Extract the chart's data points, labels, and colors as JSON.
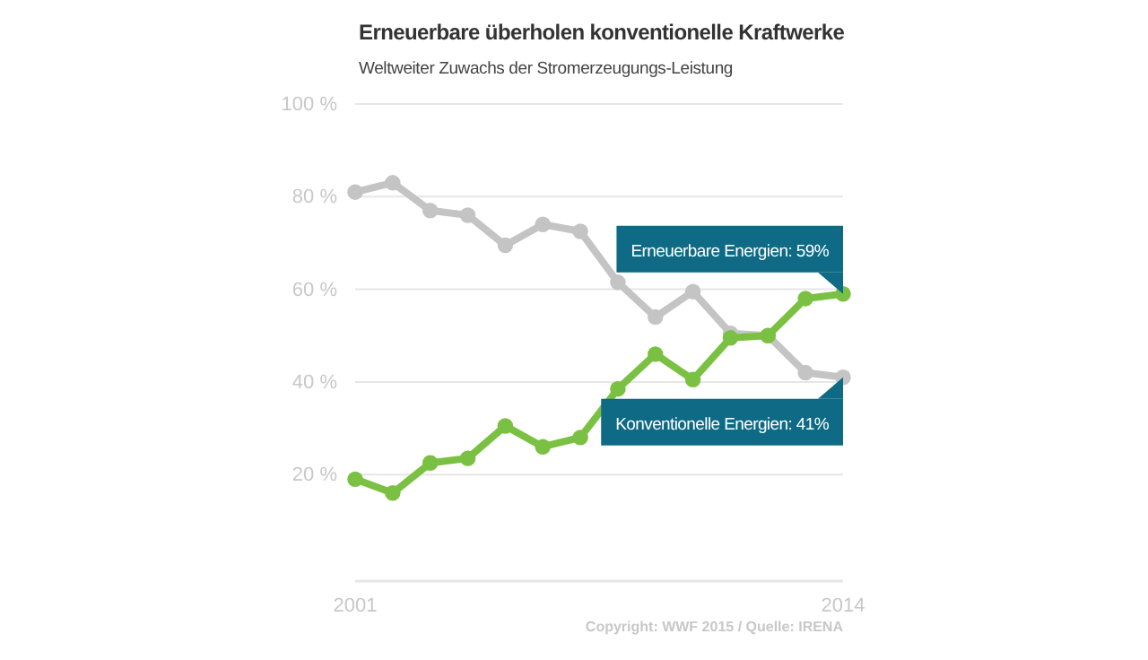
{
  "chart_data": {
    "type": "line",
    "title": "Erneuerbare überholen konventionelle Kraftwerke",
    "subtitle": "Weltweiter Zuwachs der Stromerzeugungs-Leistung",
    "x": [
      2001,
      2002,
      2003,
      2004,
      2005,
      2006,
      2007,
      2008,
      2009,
      2010,
      2011,
      2012,
      2013,
      2014
    ],
    "series": [
      {
        "color": "#c4c4c4",
        "values": [
          81,
          83,
          77,
          76,
          69.5,
          74,
          72.5,
          61.5,
          54,
          59.5,
          50.5,
          50,
          42,
          41
        ]
      },
      {
        "color": "#7ac143",
        "values": [
          19,
          16,
          22.5,
          23.5,
          30.5,
          26,
          28,
          38.5,
          46,
          40.5,
          49.5,
          50,
          58,
          59
        ]
      }
    ],
    "xlim": [
      2001,
      2014
    ],
    "xticks": [
      2001,
      2014
    ],
    "ylim": [
      -3,
      100
    ],
    "yticks": [
      {
        "value": 20,
        "label": "20 %"
      },
      {
        "value": 40,
        "label": "40 %"
      },
      {
        "value": 60,
        "label": "60 %"
      },
      {
        "value": 80,
        "label": "80 %"
      },
      {
        "value": 100,
        "label": "100 %"
      }
    ],
    "grid": "y",
    "marker": "circle",
    "line_style": "solid",
    "annotations": [
      {
        "text": "Erneuerbare Energien: 59%",
        "x": 2014,
        "y": 59
      },
      {
        "text": "Konventionelle Energien: 41%",
        "x": 2014,
        "y": 41
      },
      "Copyright: WWF 2015 / Quelle: IRENA"
    ]
  }
}
